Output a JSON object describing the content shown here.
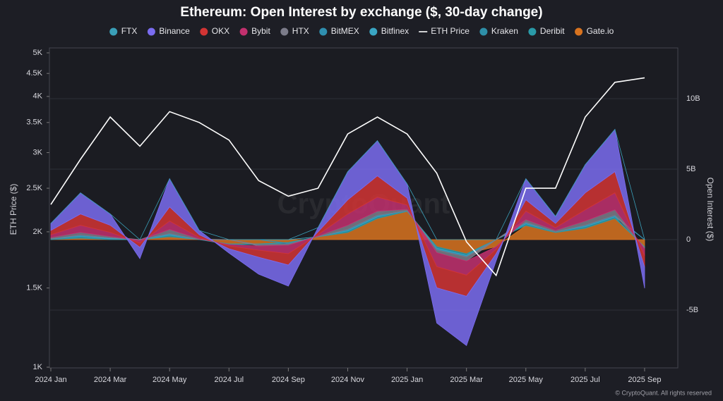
{
  "chart_data": {
    "type": "area",
    "title": "Ethereum: Open Interest by exchange ($, 30-day change)",
    "y_label": "ETH Price ($)",
    "y2_label": "Open Interest ($)",
    "watermark": "CryptoQuant",
    "footer": "© CryptoQuant. All rights reserved",
    "log_y": true,
    "grid": true,
    "legend": "top",
    "x": [
      "2024-01",
      "2024-02",
      "2024-03",
      "2024-04",
      "2024-05",
      "2024-06",
      "2024-07",
      "2024-08",
      "2024-09",
      "2024-10",
      "2024-11",
      "2024-12",
      "2025-01",
      "2025-02",
      "2025-03",
      "2025-04",
      "2025-05",
      "2025-06",
      "2025-07",
      "2025-08",
      "2025-09"
    ],
    "xlim": [
      "2024-01",
      "2025-10"
    ],
    "xticks": [
      {
        "value": "2024-01",
        "label": "2024 Jan"
      },
      {
        "value": "2024-03",
        "label": "2024 Mar"
      },
      {
        "value": "2024-05",
        "label": "2024 May"
      },
      {
        "value": "2024-07",
        "label": "2024 Jul"
      },
      {
        "value": "2024-09",
        "label": "2024 Sep"
      },
      {
        "value": "2024-11",
        "label": "2024 Nov"
      },
      {
        "value": "2025-01",
        "label": "2025 Jan"
      },
      {
        "value": "2025-03",
        "label": "2025 Mar"
      },
      {
        "value": "2025-05",
        "label": "2025 May"
      },
      {
        "value": "2025-07",
        "label": "2025 Jul"
      },
      {
        "value": "2025-09",
        "label": "2025 Sep"
      }
    ],
    "ylim": [
      1000,
      5000
    ],
    "yticks": [
      {
        "value": 1000,
        "label": "1K"
      },
      {
        "value": 1500,
        "label": "1.5K"
      },
      {
        "value": 2000,
        "label": "2K"
      },
      {
        "value": 2500,
        "label": "2.5K"
      },
      {
        "value": 3000,
        "label": "3K"
      },
      {
        "value": 3500,
        "label": "3.5K"
      },
      {
        "value": 4000,
        "label": "4K"
      },
      {
        "value": 4500,
        "label": "4.5K"
      },
      {
        "value": 5000,
        "label": "5K"
      }
    ],
    "y2lim": [
      -9.05,
      13.25
    ],
    "y2ticks": [
      {
        "value": -5,
        "label": "-5B"
      },
      0,
      {
        "value": 5,
        "label": "5B"
      },
      {
        "value": 10,
        "label": "10B"
      }
    ],
    "series": [
      {
        "name": "FTX",
        "color": "#3a9fb8",
        "axis": "y2",
        "values": [
          0,
          0,
          0,
          0,
          0,
          0,
          0,
          0,
          0,
          0,
          0,
          0,
          0,
          0,
          0,
          0,
          0,
          0,
          0,
          0,
          0
        ]
      },
      {
        "name": "Binance",
        "color": "#7a6cf0",
        "axis": "y2",
        "values": [
          0.5,
          1.5,
          0.8,
          -0.8,
          2,
          0.3,
          -0.3,
          -1.2,
          -1.5,
          0.3,
          2,
          2.5,
          1,
          -2.5,
          -3.5,
          -0.5,
          1.5,
          0.5,
          2,
          3,
          -1.5
        ]
      },
      {
        "name": "OKX",
        "color": "#d23434",
        "axis": "y2",
        "values": [
          0.3,
          0.8,
          0.5,
          -0.3,
          1,
          0.2,
          -0.2,
          -0.5,
          -0.8,
          0.2,
          1,
          1.5,
          0.5,
          -1.5,
          -1.5,
          -0.3,
          0.8,
          0.3,
          1.2,
          1.5,
          -0.8
        ]
      },
      {
        "name": "Bybit",
        "color": "#c2306e",
        "axis": "y2",
        "values": [
          0.2,
          0.5,
          0.3,
          -0.2,
          0.6,
          0.1,
          -0.1,
          -0.3,
          -0.6,
          0.1,
          0.8,
          1,
          0.3,
          -1,
          -1,
          -0.2,
          0.6,
          0.2,
          0.8,
          1.2,
          -0.5
        ]
      },
      {
        "name": "HTX",
        "color": "#7c7c8a",
        "axis": "y2",
        "values": [
          0.1,
          0.2,
          0.1,
          0,
          0.3,
          0.05,
          0,
          -0.1,
          -0.1,
          0.05,
          0.3,
          0.3,
          0.1,
          -0.2,
          -0.3,
          0,
          0.2,
          0.1,
          0.3,
          0.4,
          -0.1
        ]
      },
      {
        "name": "BitMEX",
        "color": "#2f8fb0",
        "axis": "y2",
        "values": [
          0,
          0.05,
          0,
          0,
          0.05,
          0,
          0,
          0,
          -0.05,
          0,
          0.05,
          0.05,
          0,
          -0.05,
          -0.05,
          0,
          0.05,
          0,
          0.05,
          0.05,
          0
        ]
      },
      {
        "name": "Bitfinex",
        "color": "#3aa6c4",
        "axis": "y2",
        "values": [
          0,
          0.05,
          0.05,
          0,
          0.05,
          0,
          0,
          0,
          0,
          0,
          0.05,
          0.05,
          0,
          -0.05,
          -0.05,
          0,
          0.05,
          0,
          0.05,
          0.05,
          0
        ]
      },
      {
        "name": "ETH Price",
        "color": "#ffffff",
        "axis": "y",
        "line": true,
        "values": [
          2300,
          2900,
          3600,
          3100,
          3700,
          3500,
          3200,
          2600,
          2400,
          2500,
          3300,
          3600,
          3300,
          2700,
          1900,
          1600,
          2500,
          2500,
          3600,
          4300,
          4400
        ]
      },
      {
        "name": "Kraken",
        "color": "#2e8fa8",
        "axis": "y2",
        "values": [
          0,
          0.02,
          0.02,
          0,
          0.02,
          0,
          0,
          0,
          0,
          0,
          0.02,
          0.02,
          0,
          -0.02,
          -0.02,
          0,
          0.02,
          0,
          0.02,
          0.02,
          0
        ]
      },
      {
        "name": "Deribit",
        "color": "#2a9aa8",
        "axis": "y2",
        "values": [
          0.05,
          0.1,
          0.05,
          -0.05,
          0.1,
          0,
          -0.05,
          -0.05,
          -0.05,
          0,
          0.1,
          0.1,
          0.05,
          -0.1,
          -0.1,
          0,
          0.1,
          0.05,
          0.1,
          0.1,
          -0.05
        ]
      },
      {
        "name": "Gate.io",
        "color": "#d8731f",
        "axis": "y2",
        "values": [
          0,
          0.1,
          0,
          0,
          0.2,
          0,
          -0.3,
          -0.3,
          -0.2,
          0.2,
          0.5,
          1.5,
          2,
          -0.5,
          -1,
          -0.5,
          1,
          0.5,
          0.8,
          1.5,
          -0.5
        ]
      }
    ]
  }
}
